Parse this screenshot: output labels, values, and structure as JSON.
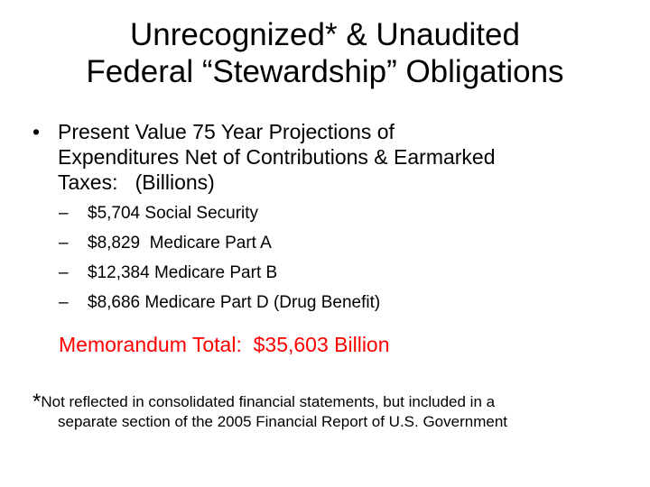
{
  "title": {
    "line1": "Unrecognized* & Unaudited",
    "line2": "Federal “Stewardship” Obligations"
  },
  "main_bullet": {
    "symbol": "•",
    "line1": "Present Value 75 Year Projections of",
    "line2": "Expenditures Net of Contributions & Earmarked",
    "line3": "Taxes:   (Billions)"
  },
  "sub_items": [
    {
      "dash": "–",
      "text": "$5,704 Social Security"
    },
    {
      "dash": "–",
      "text": "$8,829  Medicare Part A"
    },
    {
      "dash": "–",
      "text": "$12,384 Medicare Part B"
    },
    {
      "dash": "–",
      "text": "$8,686 Medicare Part D (Drug Benefit)"
    }
  ],
  "memo_total": "Memorandum Total:  $35,603 Billion",
  "footnote": {
    "star": "*",
    "line1": "Not reflected in consolidated financial statements, but included in a",
    "line2": "separate section of the 2005 Financial Report of U.S. Government"
  },
  "colors": {
    "memo_total": "#ff0000",
    "text": "#000000",
    "background": "#ffffff"
  }
}
